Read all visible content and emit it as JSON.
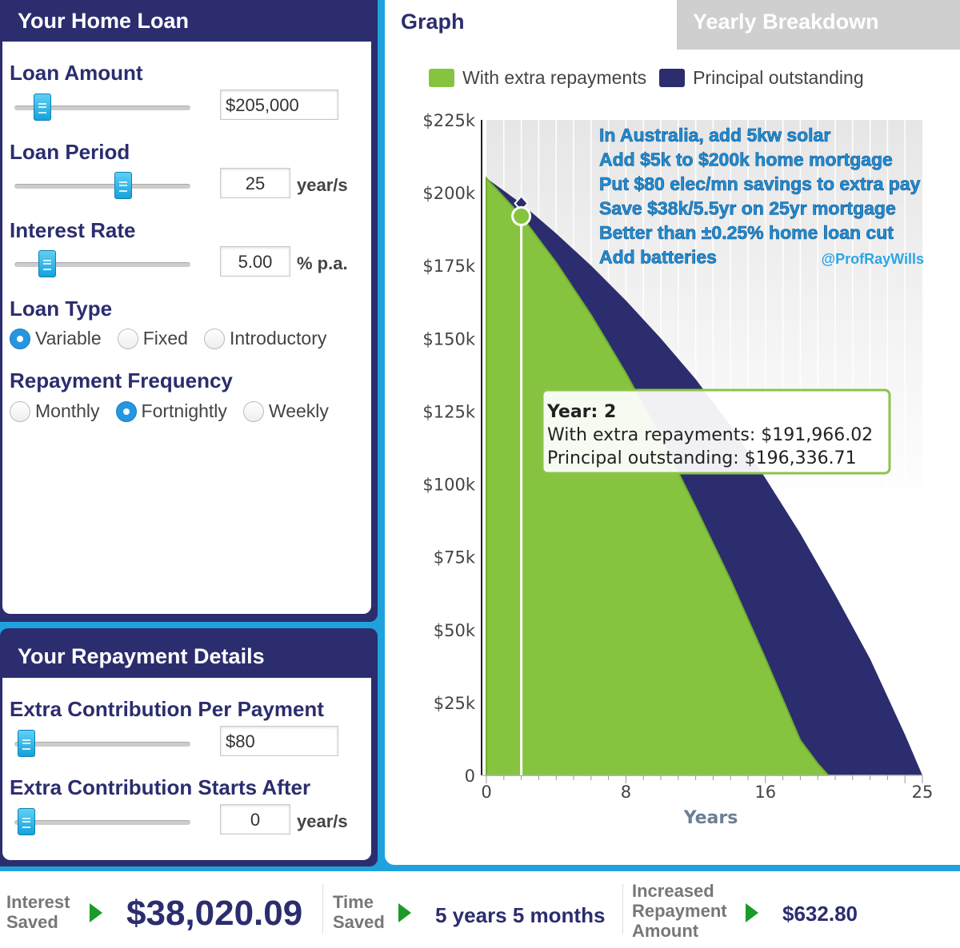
{
  "loan": {
    "title": "Your Home Loan",
    "amount_label": "Loan Amount",
    "amount_value": "$205,000",
    "amount_fraction": 0.12,
    "period_label": "Loan Period",
    "period_value": "25",
    "period_suffix": "year/s",
    "period_fraction": 0.63,
    "rate_label": "Interest Rate",
    "rate_value": "5.00",
    "rate_suffix": "% p.a.",
    "rate_fraction": 0.15,
    "type_label": "Loan Type",
    "type_options": [
      "Variable",
      "Fixed",
      "Introductory"
    ],
    "type_selected": "Variable",
    "freq_label": "Repayment Frequency",
    "freq_options": [
      "Monthly",
      "Fortnightly",
      "Weekly"
    ],
    "freq_selected": "Fortnightly"
  },
  "repayment": {
    "title": "Your Repayment Details",
    "extra_label": "Extra Contribution Per Payment",
    "extra_value": "$80",
    "extra_fraction": 0.02,
    "starts_label": "Extra Contribution Starts After",
    "starts_value": "0",
    "starts_suffix": "year/s",
    "starts_fraction": 0.02
  },
  "tabs": {
    "graph": "Graph",
    "yearly": "Yearly Breakdown"
  },
  "legend": {
    "extra": "With extra repayments",
    "principal": "Principal outstanding"
  },
  "colors": {
    "navy": "#2b2d6e",
    "green": "#86c440",
    "blue": "#1fa2dc",
    "annot": "#1e8fd6"
  },
  "chart_data": {
    "type": "area",
    "xlabel": "Years",
    "ylabel": "",
    "xlim": [
      0,
      25
    ],
    "ylim": [
      0,
      225000
    ],
    "x_ticks": [
      "0",
      "8",
      "16",
      "25"
    ],
    "y_ticks": [
      "0",
      "$25k",
      "$50k",
      "$75k",
      "$100k",
      "$125k",
      "$150k",
      "$175k",
      "$200k",
      "$225k"
    ],
    "series": [
      {
        "name": "Principal outstanding",
        "x": [
          0,
          2,
          4,
          6,
          8,
          10,
          12,
          14,
          16,
          18,
          20,
          22,
          24,
          25
        ],
        "values": [
          205000,
          196336.71,
          186000,
          175000,
          163000,
          150000,
          136000,
          120000,
          102000,
          83000,
          62000,
          40000,
          14000,
          0
        ]
      },
      {
        "name": "With extra repayments",
        "x": [
          0,
          2,
          4,
          6,
          8,
          10,
          12,
          14,
          16,
          18,
          19,
          19.6
        ],
        "values": [
          205000,
          191966.02,
          176000,
          158000,
          138000,
          116000,
          92000,
          67000,
          40000,
          12000,
          4000,
          0
        ]
      }
    ],
    "tooltip": {
      "year_line": "Year: 2",
      "extra_line": "With extra repayments: $191,966.02",
      "principal_line": "Principal outstanding: $196,336.71",
      "x": 2
    },
    "annotations": [
      "In Australia, add 5kw solar",
      "Add $5k to $200k home mortgage",
      "Put $80 elec/mn savings to extra pay",
      "Save $38k/5.5yr on 25yr mortgage",
      "Better than ±0.25% home loan cut",
      "Add batteries"
    ],
    "handle": "@ProfRayWills"
  },
  "summary": {
    "interest_label_1": "Interest",
    "interest_label_2": "Saved",
    "interest_value": "$38,020.09",
    "time_label_1": "Time",
    "time_label_2": "Saved",
    "time_value": "5 years 5 months",
    "incr_label_1": "Increased",
    "incr_label_2": "Repayment",
    "incr_label_3": "Amount",
    "incr_value": "$632.80"
  }
}
